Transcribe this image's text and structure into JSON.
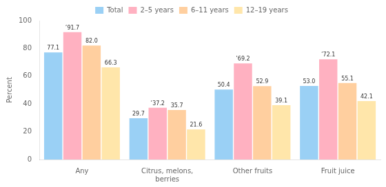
{
  "chart_data": {
    "type": "bar",
    "categories": [
      "Any",
      "Citrus, melons,\nberries",
      "Other fruits",
      "Fruit juice"
    ],
    "series": [
      {
        "name": "Total",
        "values": [
          77.1,
          29.7,
          50.4,
          53.0
        ],
        "value_labels": [
          "77.1",
          "29.7",
          "50.4",
          "53.0"
        ]
      },
      {
        "name": "2–5 years",
        "values": [
          91.7,
          37.2,
          69.2,
          72.1
        ],
        "value_labels": [
          "’91.7",
          "’37.2",
          "’69.2",
          "’72.1"
        ]
      },
      {
        "name": "6–11 years",
        "values": [
          82.0,
          35.7,
          52.9,
          55.1
        ],
        "value_labels": [
          "82.0",
          "35.7",
          "52.9",
          "55.1"
        ]
      },
      {
        "name": "12–19 years",
        "values": [
          66.3,
          21.6,
          39.1,
          42.1
        ],
        "value_labels": [
          "66.3",
          "21.6",
          "39.1",
          "42.1"
        ]
      }
    ],
    "ylabel": "Percent",
    "ylim": [
      0,
      100
    ],
    "yticks": [
      0,
      20,
      40,
      60,
      80,
      100
    ],
    "grid": false,
    "legend": "top",
    "data_labels": true
  }
}
